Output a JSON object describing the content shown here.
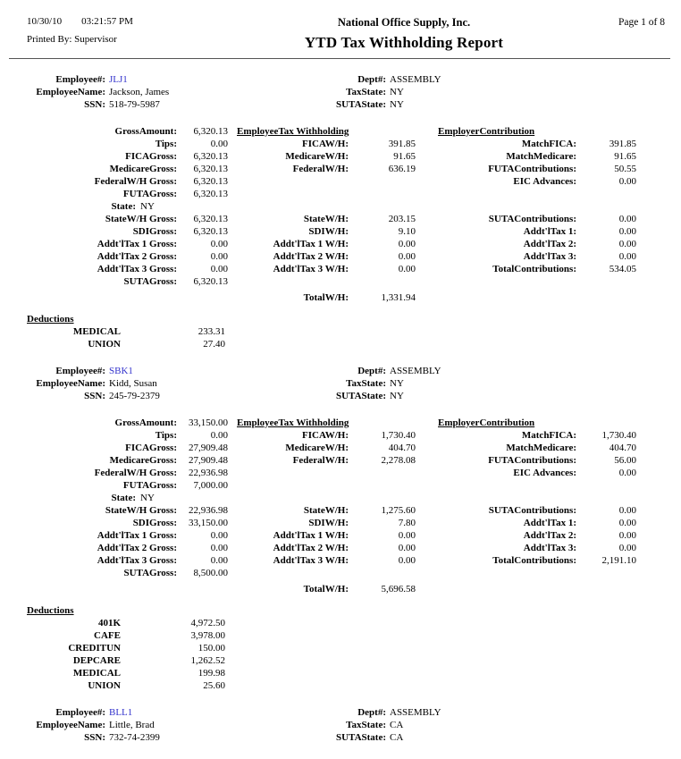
{
  "header": {
    "date": "10/30/10",
    "time": "03:21:57 PM",
    "printed_by_label": "Printed By:",
    "printed_by": "Supervisor",
    "company": "National Office Supply, Inc.",
    "title": "YTD Tax Withholding Report",
    "page": "Page 1 of  8"
  },
  "colors": {
    "employee_link": "#3333cc",
    "text": "#000000"
  },
  "labels": {
    "employee_num": "Employee#:",
    "employee_name": "EmployeeName:",
    "ssn": "SSN:",
    "dept": "Dept#:",
    "tax_state": "TaxState:",
    "suta_state": "SUTAState:",
    "gross_amount": "GrossAmount:",
    "tips": "Tips:",
    "fica_gross": "FICAGross:",
    "medicare_gross": "MedicareGross:",
    "federal_wh_gross": "FederalW/H Gross:",
    "futa_gross": "FUTAGross:",
    "state": "State:",
    "state_wh_gross": "StateW/H Gross:",
    "sdi_gross": "SDIGross:",
    "addtl_tax_1_gross": "Addt'lTax 1 Gross:",
    "addtl_tax_2_gross": "Addt'lTax 2 Gross:",
    "addtl_tax_3_gross": "Addt'lTax 3 Gross:",
    "suta_gross": "SUTAGross:",
    "employee_tax_header": "EmployeeTax Withholding",
    "fica_wh": "FICAW/H:",
    "medicare_wh": "MedicareW/H:",
    "federal_wh": "FederalW/H:",
    "state_wh": "StateW/H:",
    "sdi_wh": "SDIW/H:",
    "addtl_tax_1_wh": "Addt'lTax 1 W/H:",
    "addtl_tax_2_wh": "Addt'lTax 2 W/H:",
    "addtl_tax_3_wh": "Addt'lTax 3 W/H:",
    "total_wh": "TotalW/H:",
    "employer_contrib_header": "EmployerContribution",
    "match_fica": "MatchFICA:",
    "match_medicare": "MatchMedicare:",
    "futa_contributions": "FUTAContributions:",
    "eic_advances": "EIC Advances:",
    "suta_contributions": "SUTAContributions:",
    "addtl_tax_1": "Addt'lTax 1:",
    "addtl_tax_2": "Addt'lTax 2:",
    "addtl_tax_3": "Addt'lTax 3:",
    "total_contributions": "TotalContributions:",
    "deductions": "Deductions"
  },
  "employees": [
    {
      "id": "JLJ1",
      "name": "Jackson, James",
      "ssn": "518-79-5987",
      "dept": "ASSEMBLY",
      "tax_state": "NY",
      "suta_state": "NY",
      "state": "NY",
      "partial": false,
      "gross": {
        "gross_amount": "6,320.13",
        "tips": "0.00",
        "fica_gross": "6,320.13",
        "medicare_gross": "6,320.13",
        "federal_wh_gross": "6,320.13",
        "futa_gross": "6,320.13",
        "state_wh_gross": "6,320.13",
        "sdi_gross": "6,320.13",
        "addtl_tax_1_gross": "0.00",
        "addtl_tax_2_gross": "0.00",
        "addtl_tax_3_gross": "0.00",
        "suta_gross": "6,320.13"
      },
      "withholding": {
        "fica_wh": "391.85",
        "medicare_wh": "91.65",
        "federal_wh": "636.19",
        "state_wh": "203.15",
        "sdi_wh": "9.10",
        "addtl_tax_1_wh": "0.00",
        "addtl_tax_2_wh": "0.00",
        "addtl_tax_3_wh": "0.00",
        "total_wh": "1,331.94"
      },
      "employer": {
        "match_fica": "391.85",
        "match_medicare": "91.65",
        "futa_contributions": "50.55",
        "eic_advances": "0.00",
        "suta_contributions": "0.00",
        "addtl_tax_1": "0.00",
        "addtl_tax_2": "0.00",
        "addtl_tax_3": "0.00",
        "total_contributions": "534.05"
      },
      "deductions": [
        {
          "label": "MEDICAL",
          "value": "233.31"
        },
        {
          "label": "UNION",
          "value": "27.40"
        }
      ]
    },
    {
      "id": "SBK1",
      "name": "Kidd, Susan",
      "ssn": "245-79-2379",
      "dept": "ASSEMBLY",
      "tax_state": "NY",
      "suta_state": "NY",
      "state": "NY",
      "partial": false,
      "gross": {
        "gross_amount": "33,150.00",
        "tips": "0.00",
        "fica_gross": "27,909.48",
        "medicare_gross": "27,909.48",
        "federal_wh_gross": "22,936.98",
        "futa_gross": "7,000.00",
        "state_wh_gross": "22,936.98",
        "sdi_gross": "33,150.00",
        "addtl_tax_1_gross": "0.00",
        "addtl_tax_2_gross": "0.00",
        "addtl_tax_3_gross": "0.00",
        "suta_gross": "8,500.00"
      },
      "withholding": {
        "fica_wh": "1,730.40",
        "medicare_wh": "404.70",
        "federal_wh": "2,278.08",
        "state_wh": "1,275.60",
        "sdi_wh": "7.80",
        "addtl_tax_1_wh": "0.00",
        "addtl_tax_2_wh": "0.00",
        "addtl_tax_3_wh": "0.00",
        "total_wh": "5,696.58"
      },
      "employer": {
        "match_fica": "1,730.40",
        "match_medicare": "404.70",
        "futa_contributions": "56.00",
        "eic_advances": "0.00",
        "suta_contributions": "0.00",
        "addtl_tax_1": "0.00",
        "addtl_tax_2": "0.00",
        "addtl_tax_3": "0.00",
        "total_contributions": "2,191.10"
      },
      "deductions": [
        {
          "label": "401K",
          "value": "4,972.50"
        },
        {
          "label": "CAFE",
          "value": "3,978.00"
        },
        {
          "label": "CREDITUN",
          "value": "150.00"
        },
        {
          "label": "DEPCARE",
          "value": "1,262.52"
        },
        {
          "label": "MEDICAL",
          "value": "199.98"
        },
        {
          "label": "UNION",
          "value": "25.60"
        }
      ]
    },
    {
      "id": "BLL1",
      "name": "Little, Brad",
      "ssn": "732-74-2399",
      "dept": "ASSEMBLY",
      "tax_state": "CA",
      "suta_state": "CA",
      "partial": true
    }
  ]
}
